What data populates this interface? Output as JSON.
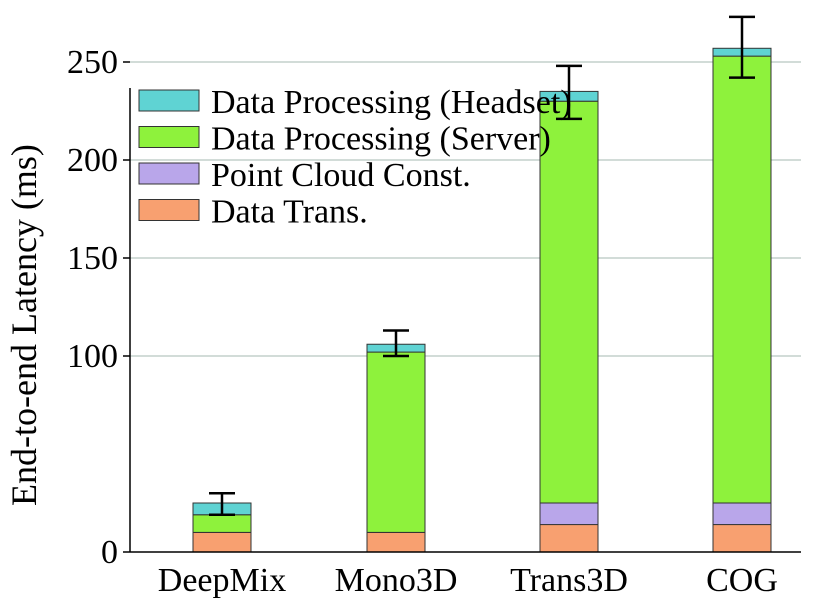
{
  "chart_data": {
    "type": "bar",
    "stacked": true,
    "title": "",
    "xlabel": "",
    "ylabel": "End-to-end Latency (ms)",
    "ylim": [
      0,
      285
    ],
    "yticks": [
      0,
      100,
      150,
      200,
      250
    ],
    "grid": "horizontal",
    "legend_position": "top-left",
    "categories": [
      "DeepMix",
      "Mono3D",
      "Trans3D",
      "COG"
    ],
    "series": [
      {
        "name": "Data Trans.",
        "color": "#f8a070",
        "values": [
          10,
          10,
          14,
          14
        ]
      },
      {
        "name": "Point Cloud Const.",
        "color": "#b9a6ea",
        "values": [
          0,
          0,
          11,
          11
        ]
      },
      {
        "name": "Data Processing (Server)",
        "color": "#8ef23c",
        "values": [
          9,
          92,
          205,
          228
        ]
      },
      {
        "name": "Data Processing (Headset)",
        "color": "#5fd3d3",
        "values": [
          6,
          4,
          5,
          4
        ]
      }
    ],
    "error_bars": [
      {
        "low": 19,
        "high": 30
      },
      {
        "low": 100,
        "high": 113
      },
      {
        "low": 221,
        "high": 248
      },
      {
        "low": 242,
        "high": 273
      }
    ],
    "legend_order": [
      "Data Processing (Headset)",
      "Data Processing (Server)",
      "Point Cloud Const.",
      "Data Trans."
    ]
  }
}
